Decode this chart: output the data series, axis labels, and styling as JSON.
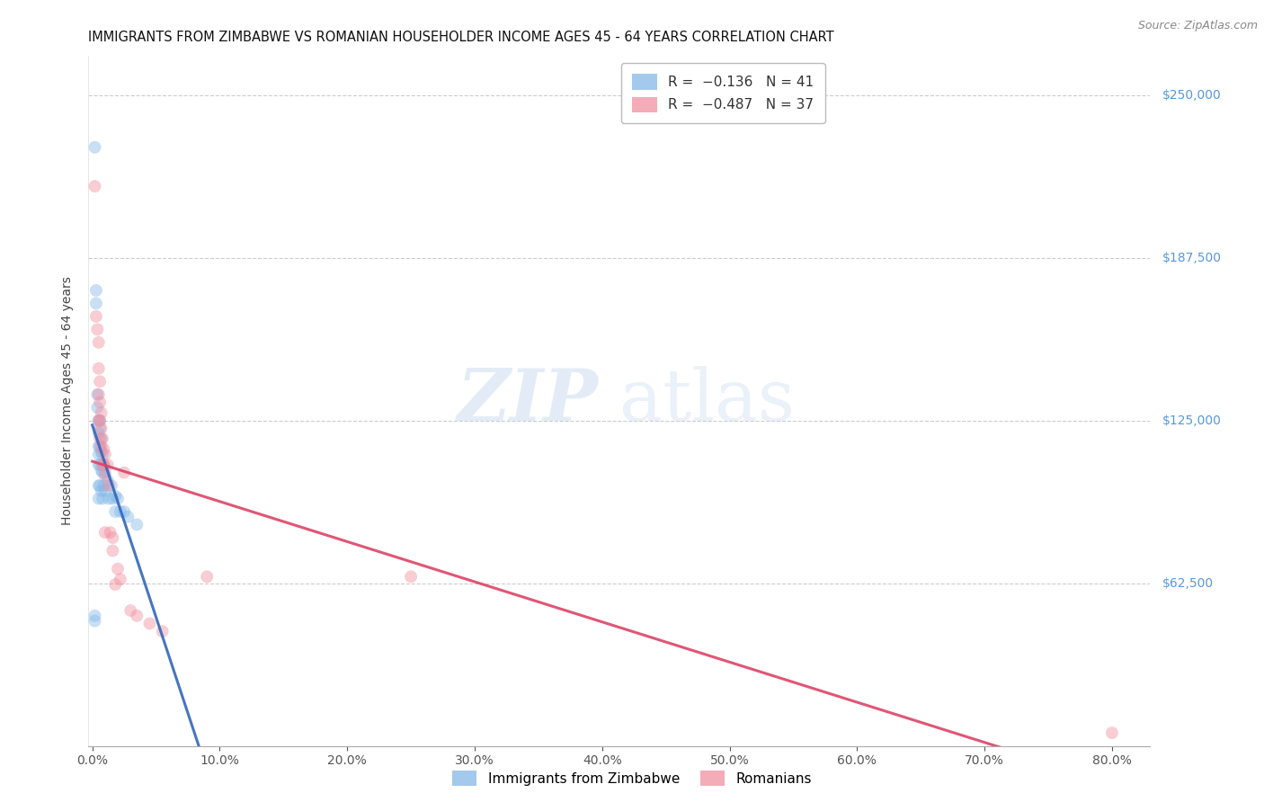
{
  "title": "IMMIGRANTS FROM ZIMBABWE VS ROMANIAN HOUSEHOLDER INCOME AGES 45 - 64 YEARS CORRELATION CHART",
  "source": "Source: ZipAtlas.com",
  "ylabel": "Householder Income Ages 45 - 64 years",
  "ytick_labels": [
    "$62,500",
    "$125,000",
    "$187,500",
    "$250,000"
  ],
  "ytick_vals": [
    62500,
    125000,
    187500,
    250000
  ],
  "ylim": [
    0,
    265000
  ],
  "xlim": [
    -0.003,
    0.83
  ],
  "background_color": "#ffffff",
  "grid_color": "#cccccc",
  "watermark_zip": "ZIP",
  "watermark_atlas": "atlas",
  "zimbabwe_x": [
    0.002,
    0.002,
    0.003,
    0.003,
    0.004,
    0.004,
    0.005,
    0.005,
    0.005,
    0.005,
    0.005,
    0.005,
    0.005,
    0.006,
    0.006,
    0.006,
    0.006,
    0.006,
    0.007,
    0.007,
    0.007,
    0.007,
    0.008,
    0.008,
    0.008,
    0.009,
    0.009,
    0.01,
    0.01,
    0.012,
    0.013,
    0.015,
    0.016,
    0.018,
    0.018,
    0.02,
    0.022,
    0.025,
    0.028,
    0.035,
    0.002
  ],
  "zimbabwe_y": [
    230000,
    50000,
    175000,
    170000,
    135000,
    130000,
    125000,
    120000,
    115000,
    112000,
    108000,
    100000,
    95000,
    125000,
    122000,
    115000,
    108000,
    100000,
    118000,
    113000,
    106000,
    98000,
    112000,
    105000,
    95000,
    108000,
    100000,
    105000,
    98000,
    102000,
    95000,
    100000,
    95000,
    96000,
    90000,
    95000,
    90000,
    90000,
    88000,
    85000,
    48000
  ],
  "romanian_x": [
    0.002,
    0.003,
    0.004,
    0.005,
    0.005,
    0.005,
    0.005,
    0.006,
    0.006,
    0.006,
    0.006,
    0.007,
    0.007,
    0.007,
    0.008,
    0.008,
    0.009,
    0.009,
    0.01,
    0.01,
    0.01,
    0.012,
    0.013,
    0.014,
    0.016,
    0.016,
    0.018,
    0.02,
    0.022,
    0.025,
    0.03,
    0.035,
    0.045,
    0.055,
    0.09,
    0.25,
    0.8
  ],
  "romanian_y": [
    215000,
    165000,
    160000,
    155000,
    145000,
    135000,
    125000,
    140000,
    132000,
    125000,
    118000,
    128000,
    122000,
    115000,
    118000,
    108000,
    114000,
    108000,
    112000,
    104000,
    82000,
    108000,
    100000,
    82000,
    80000,
    75000,
    62000,
    68000,
    64000,
    105000,
    52000,
    50000,
    47000,
    44000,
    65000,
    65000,
    5000
  ],
  "zim_color": "#85b8e8",
  "rom_color": "#f090a0",
  "zim_solid_color": "#3366bb",
  "zim_dash_color": "#88aadd",
  "rom_line_color": "#dd4466",
  "dot_size": 100,
  "dot_alpha": 0.45,
  "title_fontsize": 10.5,
  "axis_label_fontsize": 10,
  "tick_fontsize": 10,
  "legend_fontsize": 11,
  "ytick_color": "#5599dd",
  "source_color": "#888888"
}
